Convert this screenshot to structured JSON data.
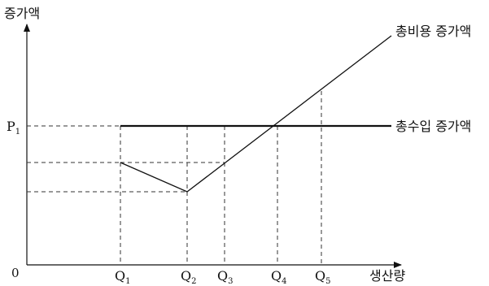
{
  "axis_labels": {
    "y": "증가액",
    "x": "생산량",
    "origin": "0"
  },
  "price_label": {
    "main": "P",
    "sub": "1"
  },
  "quantity_labels": [
    {
      "main": "Q",
      "sub": "1"
    },
    {
      "main": "Q",
      "sub": "2"
    },
    {
      "main": "Q",
      "sub": "3"
    },
    {
      "main": "Q",
      "sub": "4"
    },
    {
      "main": "Q",
      "sub": "5"
    }
  ],
  "curve_labels": {
    "total_cost": "총비용 증가액",
    "total_revenue": "총수입 증가액"
  },
  "colors": {
    "line": "#111111",
    "dashed": "#333333"
  }
}
